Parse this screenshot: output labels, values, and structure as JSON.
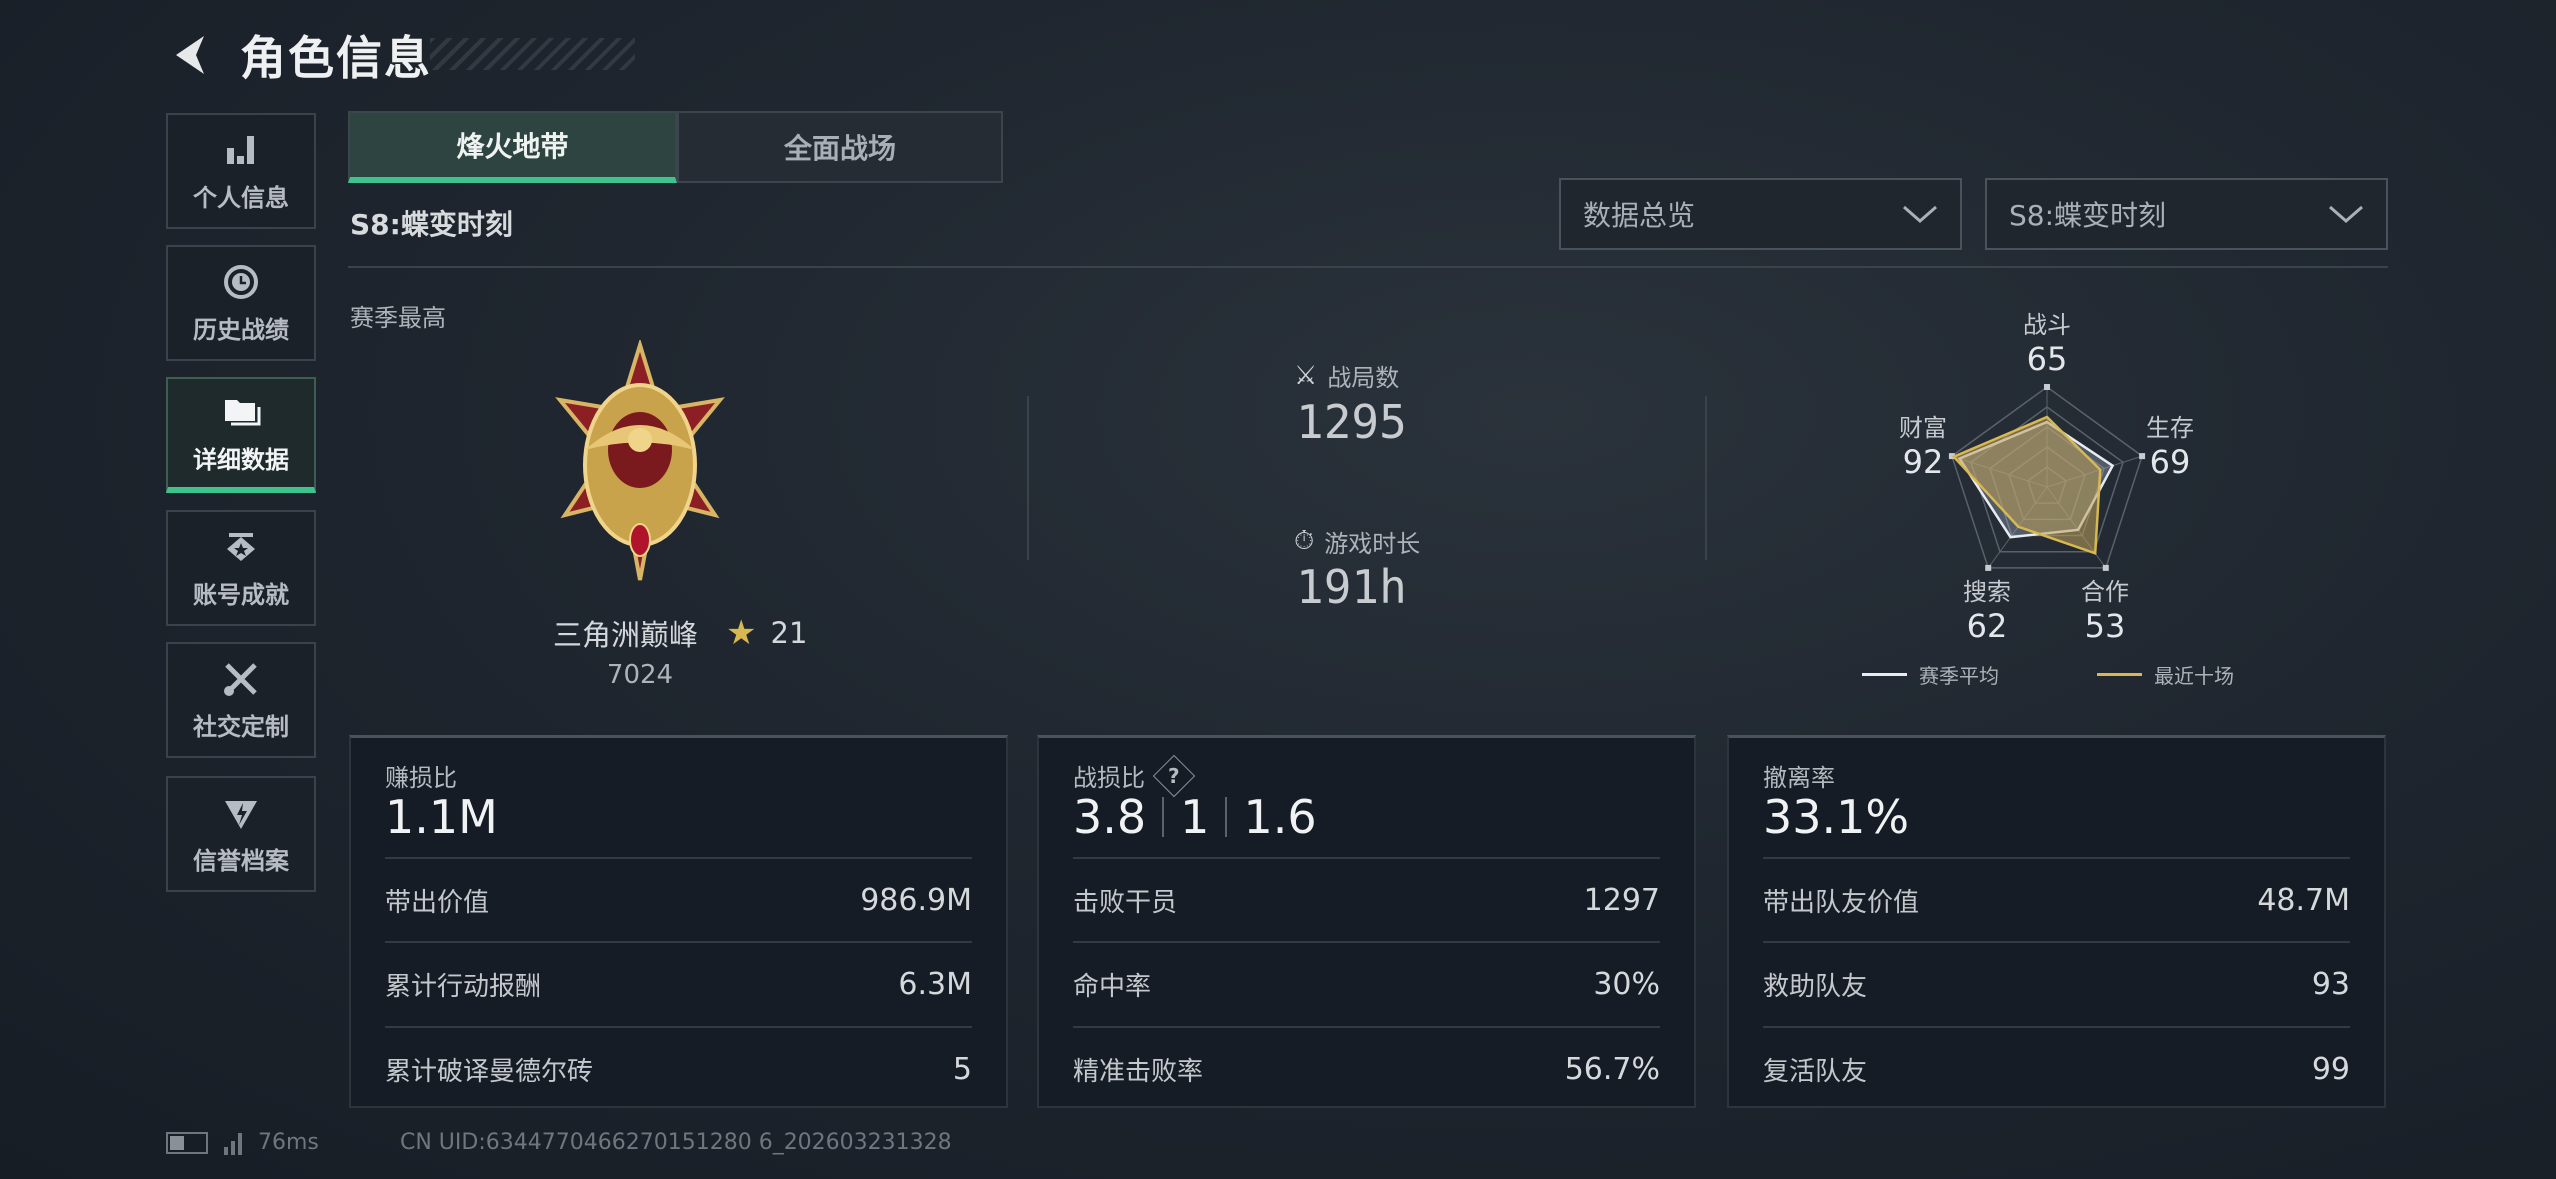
{
  "header": {
    "title": "角色信息"
  },
  "sidebar": {
    "items": [
      {
        "label": "个人信息",
        "icon": "bar-chart-icon"
      },
      {
        "label": "历史战绩",
        "icon": "history-clock-icon"
      },
      {
        "label": "详细数据",
        "icon": "folder-icon",
        "active": true
      },
      {
        "label": "账号成就",
        "icon": "achievement-badge-icon"
      },
      {
        "label": "社交定制",
        "icon": "tools-icon"
      },
      {
        "label": "信誉档案",
        "icon": "credit-shield-icon"
      }
    ]
  },
  "tabs": [
    {
      "label": "烽火地带",
      "active": true
    },
    {
      "label": "全面战场"
    }
  ],
  "season_title": "S8:蝶变时刻",
  "dropdowns": {
    "view": "数据总览",
    "season": "S8:蝶变时刻"
  },
  "season_best": {
    "label": "赛季最高",
    "rank_name": "三角洲巅峰",
    "stars": "21",
    "score": "7024"
  },
  "summary": {
    "matches_label": "战局数",
    "matches": "1295",
    "playtime_label": "游戏时长",
    "playtime": "191h"
  },
  "radar": {
    "axes": [
      {
        "label": "战斗",
        "value": "65"
      },
      {
        "label": "生存",
        "value": "69"
      },
      {
        "label": "合作",
        "value": "53"
      },
      {
        "label": "搜索",
        "value": "62"
      },
      {
        "label": "财富",
        "value": "92"
      }
    ],
    "max": 100,
    "series": [
      {
        "name": "赛季平均",
        "color": "#e8ecf0",
        "values": [
          65,
          69,
          53,
          62,
          92
        ]
      },
      {
        "name": "最近十场",
        "color": "#d8b850",
        "values": [
          70,
          56,
          82,
          49,
          98
        ]
      }
    ]
  },
  "cards": [
    {
      "title": "赚损比",
      "value": "1.1M",
      "rows": [
        {
          "label": "带出价值",
          "value": "986.9M"
        },
        {
          "label": "累计行动报酬",
          "value": "6.3M"
        },
        {
          "label": "累计破译曼德尔砖",
          "value": "5"
        }
      ]
    },
    {
      "title": "战损比",
      "values": [
        "3.8",
        "1",
        "1.6"
      ],
      "help": "?",
      "rows": [
        {
          "label": "击败干员",
          "value": "1297"
        },
        {
          "label": "命中率",
          "value": "30%"
        },
        {
          "label": "精准击败率",
          "value": "56.7%"
        }
      ]
    },
    {
      "title": "撤离率",
      "value": "33.1%",
      "rows": [
        {
          "label": "带出队友价值",
          "value": "48.7M"
        },
        {
          "label": "救助队友",
          "value": "93"
        },
        {
          "label": "复活队友",
          "value": "99"
        }
      ]
    }
  ],
  "footer": {
    "ping": "76ms",
    "uid": "CN UID:6344770466270151280 6_202603231328"
  },
  "colors": {
    "accent": "#3fc38d",
    "gold": "#d8b850"
  }
}
